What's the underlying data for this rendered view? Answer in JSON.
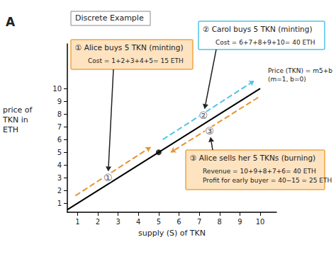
{
  "chart_data": {
    "type": "line",
    "panel_label": "A",
    "title": "Discrete Example",
    "x_label": "supply (S) of TKN",
    "y_label": "price of TKN in ETH",
    "xlim": [
      0.5,
      10.8
    ],
    "xticks": [
      1,
      2,
      3,
      4,
      5,
      6,
      7,
      8,
      9,
      10
    ],
    "ylim": [
      0.3,
      13.5
    ],
    "yticks": [
      1,
      2,
      3,
      4,
      5,
      6,
      7,
      8,
      9,
      10
    ],
    "grid": false,
    "series": [
      {
        "name": "Price (TKN) = m5+b",
        "color": "#000000",
        "x": [
          0.5,
          10
        ],
        "values": [
          0.5,
          10
        ]
      }
    ],
    "line_label": [
      "Price (TKN) = m5+b",
      "(m=1, b=0)"
    ],
    "points": {
      "color": "#000000",
      "x": [
        5
      ],
      "values": [
        5
      ]
    },
    "arrows": [
      {
        "color": "#e8922e",
        "x": [
          0.9,
          4.6
        ],
        "values": [
          1.6,
          5.4
        ]
      },
      {
        "color": "#4fc3e6",
        "x": [
          5.2,
          9.7
        ],
        "values": [
          6.0,
          10.6
        ]
      },
      {
        "color": "#e8922e",
        "x": [
          9.9,
          5.6
        ],
        "values": [
          9.3,
          5.0
        ]
      }
    ],
    "markers": [
      {
        "label": "①",
        "x": 2.5,
        "y": 3.0
      },
      {
        "label": "②",
        "x": 7.2,
        "y": 7.9
      },
      {
        "label": "③",
        "x": 7.5,
        "y": 6.7
      }
    ],
    "annotations": [
      {
        "title": "① Alice buys 5 TKN (minting)",
        "lines": [
          "Cost = 1+2+3+4+5= 15 ETH"
        ],
        "marker": 0
      },
      {
        "title": "② Carol buys 5 TKN (minting)",
        "lines": [
          "Cost = 6+7+8+9+10= 40 ETH"
        ],
        "marker": 1
      },
      {
        "title": "③ Alice sells her 5 TKNs (burning)",
        "lines": [
          "Revenue = 10+9+8+7+6= 40 ETH",
          "Profit for early buyer = 40−15 = 25 ETH"
        ],
        "marker": 2
      }
    ]
  }
}
